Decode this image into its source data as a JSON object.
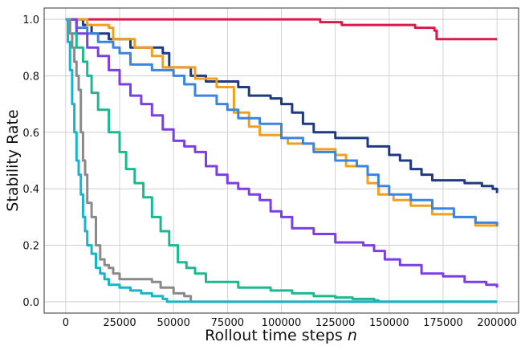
{
  "chart_data": {
    "type": "line",
    "title": "",
    "xlabel": "Rollout time steps",
    "xlabel_var": "n",
    "ylabel": "Stability Rate",
    "xlim": [
      -10000,
      210000
    ],
    "ylim": [
      -0.04,
      1.04
    ],
    "x_ticks": [
      0,
      25000,
      50000,
      75000,
      100000,
      125000,
      150000,
      175000,
      200000
    ],
    "y_ticks": [
      0.0,
      0.2,
      0.4,
      0.6,
      0.8,
      1.0
    ],
    "grid": true,
    "legend": "none",
    "series": [
      {
        "color": "#d81b4a",
        "points": [
          [
            0,
            1.0
          ],
          [
            118000,
            1.0
          ],
          [
            118000,
            0.99
          ],
          [
            128000,
            0.99
          ],
          [
            128000,
            0.98
          ],
          [
            162000,
            0.98
          ],
          [
            162000,
            0.97
          ],
          [
            171000,
            0.97
          ],
          [
            171000,
            0.96
          ],
          [
            172000,
            0.96
          ],
          [
            172000,
            0.93
          ],
          [
            200000,
            0.93
          ]
        ]
      },
      {
        "color": "#1f3a80",
        "points": [
          [
            0,
            1.0
          ],
          [
            8000,
            0.98
          ],
          [
            12000,
            0.95
          ],
          [
            20000,
            0.93
          ],
          [
            30000,
            0.9
          ],
          [
            45000,
            0.88
          ],
          [
            48000,
            0.83
          ],
          [
            58000,
            0.8
          ],
          [
            65000,
            0.78
          ],
          [
            80000,
            0.76
          ],
          [
            85000,
            0.73
          ],
          [
            95000,
            0.72
          ],
          [
            100000,
            0.7
          ],
          [
            105000,
            0.67
          ],
          [
            110000,
            0.63
          ],
          [
            115000,
            0.6
          ],
          [
            125000,
            0.58
          ],
          [
            140000,
            0.55
          ],
          [
            150000,
            0.52
          ],
          [
            155000,
            0.5
          ],
          [
            160000,
            0.47
          ],
          [
            165000,
            0.45
          ],
          [
            170000,
            0.43
          ],
          [
            185000,
            0.42
          ],
          [
            193000,
            0.41
          ],
          [
            198000,
            0.4
          ],
          [
            200000,
            0.385
          ]
        ]
      },
      {
        "color": "#f0a020",
        "points": [
          [
            0,
            1.0
          ],
          [
            10000,
            0.98
          ],
          [
            20000,
            0.97
          ],
          [
            22000,
            0.93
          ],
          [
            32000,
            0.9
          ],
          [
            40000,
            0.87
          ],
          [
            45000,
            0.83
          ],
          [
            60000,
            0.79
          ],
          [
            70000,
            0.76
          ],
          [
            78000,
            0.67
          ],
          [
            85000,
            0.62
          ],
          [
            90000,
            0.59
          ],
          [
            100000,
            0.58
          ],
          [
            103000,
            0.56
          ],
          [
            115000,
            0.54
          ],
          [
            125000,
            0.52
          ],
          [
            130000,
            0.48
          ],
          [
            140000,
            0.42
          ],
          [
            145000,
            0.38
          ],
          [
            152000,
            0.36
          ],
          [
            160000,
            0.34
          ],
          [
            170000,
            0.31
          ],
          [
            180000,
            0.3
          ],
          [
            190000,
            0.27
          ],
          [
            200000,
            0.265
          ]
        ]
      },
      {
        "color": "#3b84e0",
        "points": [
          [
            0,
            1.0
          ],
          [
            5000,
            0.97
          ],
          [
            10000,
            0.95
          ],
          [
            15000,
            0.92
          ],
          [
            22000,
            0.9
          ],
          [
            25000,
            0.88
          ],
          [
            30000,
            0.84
          ],
          [
            40000,
            0.82
          ],
          [
            50000,
            0.8
          ],
          [
            55000,
            0.77
          ],
          [
            60000,
            0.73
          ],
          [
            70000,
            0.7
          ],
          [
            75000,
            0.68
          ],
          [
            80000,
            0.65
          ],
          [
            90000,
            0.63
          ],
          [
            100000,
            0.58
          ],
          [
            110000,
            0.56
          ],
          [
            115000,
            0.53
          ],
          [
            125000,
            0.5
          ],
          [
            135000,
            0.48
          ],
          [
            140000,
            0.45
          ],
          [
            145000,
            0.41
          ],
          [
            150000,
            0.38
          ],
          [
            160000,
            0.36
          ],
          [
            170000,
            0.33
          ],
          [
            180000,
            0.3
          ],
          [
            190000,
            0.28
          ],
          [
            200000,
            0.27
          ]
        ]
      },
      {
        "color": "#7b3fe4",
        "points": [
          [
            0,
            1.0
          ],
          [
            5000,
            0.95
          ],
          [
            10000,
            0.9
          ],
          [
            15000,
            0.87
          ],
          [
            20000,
            0.82
          ],
          [
            25000,
            0.77
          ],
          [
            30000,
            0.73
          ],
          [
            35000,
            0.7
          ],
          [
            40000,
            0.66
          ],
          [
            45000,
            0.61
          ],
          [
            50000,
            0.57
          ],
          [
            55000,
            0.55
          ],
          [
            60000,
            0.53
          ],
          [
            65000,
            0.48
          ],
          [
            70000,
            0.45
          ],
          [
            75000,
            0.42
          ],
          [
            80000,
            0.4
          ],
          [
            85000,
            0.38
          ],
          [
            90000,
            0.36
          ],
          [
            95000,
            0.32
          ],
          [
            100000,
            0.3
          ],
          [
            105000,
            0.26
          ],
          [
            115000,
            0.24
          ],
          [
            125000,
            0.21
          ],
          [
            138000,
            0.2
          ],
          [
            143000,
            0.18
          ],
          [
            148000,
            0.15
          ],
          [
            155000,
            0.13
          ],
          [
            165000,
            0.1
          ],
          [
            175000,
            0.09
          ],
          [
            185000,
            0.07
          ],
          [
            195000,
            0.06
          ],
          [
            200000,
            0.05
          ]
        ]
      },
      {
        "color": "#1db890",
        "points": [
          [
            0,
            1.0
          ],
          [
            2000,
            0.95
          ],
          [
            5000,
            0.9
          ],
          [
            8000,
            0.85
          ],
          [
            10000,
            0.8
          ],
          [
            12000,
            0.74
          ],
          [
            15000,
            0.68
          ],
          [
            20000,
            0.6
          ],
          [
            25000,
            0.53
          ],
          [
            28000,
            0.47
          ],
          [
            32000,
            0.42
          ],
          [
            36000,
            0.37
          ],
          [
            40000,
            0.3
          ],
          [
            44000,
            0.25
          ],
          [
            48000,
            0.2
          ],
          [
            52000,
            0.14
          ],
          [
            56000,
            0.12
          ],
          [
            60000,
            0.1
          ],
          [
            65000,
            0.07
          ],
          [
            80000,
            0.05
          ],
          [
            95000,
            0.04
          ],
          [
            105000,
            0.03
          ],
          [
            115000,
            0.02
          ],
          [
            125000,
            0.015
          ],
          [
            133000,
            0.01
          ],
          [
            143000,
            0.005
          ],
          [
            145000,
            0.0
          ],
          [
            200000,
            0.0
          ]
        ]
      },
      {
        "color": "#8a8a8a",
        "points": [
          [
            0,
            1.0
          ],
          [
            2000,
            0.95
          ],
          [
            3000,
            0.9
          ],
          [
            4000,
            0.85
          ],
          [
            5000,
            0.8
          ],
          [
            6000,
            0.75
          ],
          [
            7000,
            0.6
          ],
          [
            8000,
            0.5
          ],
          [
            9000,
            0.45
          ],
          [
            10000,
            0.35
          ],
          [
            12000,
            0.3
          ],
          [
            14000,
            0.2
          ],
          [
            16000,
            0.15
          ],
          [
            18000,
            0.13
          ],
          [
            20000,
            0.12
          ],
          [
            22000,
            0.1
          ],
          [
            25000,
            0.08
          ],
          [
            40000,
            0.07
          ],
          [
            44000,
            0.05
          ],
          [
            50000,
            0.03
          ],
          [
            55000,
            0.02
          ],
          [
            58000,
            0.0
          ],
          [
            200000,
            0.0
          ]
        ]
      },
      {
        "color": "#19b4c8",
        "points": [
          [
            0,
            1.0
          ],
          [
            1000,
            0.92
          ],
          [
            2000,
            0.82
          ],
          [
            3000,
            0.7
          ],
          [
            4000,
            0.6
          ],
          [
            5000,
            0.5
          ],
          [
            6000,
            0.45
          ],
          [
            7000,
            0.38
          ],
          [
            8000,
            0.3
          ],
          [
            9000,
            0.25
          ],
          [
            10000,
            0.2
          ],
          [
            12000,
            0.17
          ],
          [
            14000,
            0.12
          ],
          [
            16000,
            0.1
          ],
          [
            18000,
            0.08
          ],
          [
            20000,
            0.06
          ],
          [
            25000,
            0.05
          ],
          [
            30000,
            0.04
          ],
          [
            35000,
            0.03
          ],
          [
            40000,
            0.02
          ],
          [
            45000,
            0.01
          ],
          [
            47000,
            0.0
          ],
          [
            200000,
            0.0
          ]
        ]
      }
    ]
  }
}
